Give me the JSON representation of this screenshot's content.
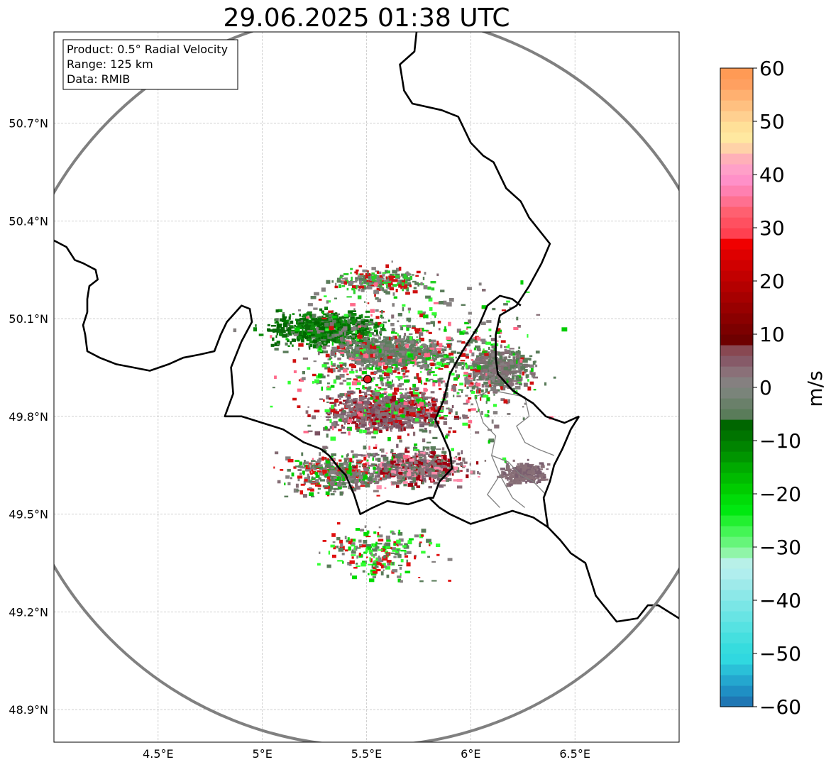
{
  "map": {
    "title": "29.06.2025 01:38 UTC",
    "info_lines": [
      "Product: 0.5° Radial Velocity",
      "Range: 125 km",
      "Data: RMIB"
    ],
    "extent": {
      "lon_min": 4.0,
      "lon_max": 7.0,
      "lat_min": 48.8,
      "lat_max": 50.98
    },
    "lon_ticks": [
      {
        "value": 4.5,
        "label": "4.5°E"
      },
      {
        "value": 5.0,
        "label": "5°E"
      },
      {
        "value": 5.5,
        "label": "5.5°E"
      },
      {
        "value": 6.0,
        "label": "6°E"
      },
      {
        "value": 6.5,
        "label": "6.5°E"
      }
    ],
    "lat_ticks": [
      {
        "value": 48.9,
        "label": "48.9°N"
      },
      {
        "value": 49.2,
        "label": "49.2°N"
      },
      {
        "value": 49.5,
        "label": "49.5°N"
      },
      {
        "value": 49.8,
        "label": "49.8°N"
      },
      {
        "value": 50.1,
        "label": "50.1°N"
      },
      {
        "value": 50.4,
        "label": "50.4°N"
      },
      {
        "value": 50.7,
        "label": "50.7°N"
      }
    ],
    "grid": true,
    "radar_site": {
      "lon": 5.505,
      "lat": 49.914,
      "color": "#e0141e"
    },
    "range_km": 125,
    "range_ring_color": "#808080",
    "border_color": "#000000",
    "inner_border_color": "#808080",
    "borders": [
      [
        [
          4.0,
          50.34
        ],
        [
          4.06,
          50.32
        ],
        [
          4.1,
          50.28
        ],
        [
          4.14,
          50.27
        ],
        [
          4.2,
          50.25
        ],
        [
          4.21,
          50.22
        ],
        [
          4.17,
          50.2
        ],
        [
          4.16,
          50.16
        ],
        [
          4.16,
          50.12
        ],
        [
          4.14,
          50.08
        ],
        [
          4.15,
          50.05
        ],
        [
          4.16,
          50.0
        ],
        [
          4.22,
          49.98
        ],
        [
          4.3,
          49.96
        ],
        [
          4.38,
          49.95
        ],
        [
          4.46,
          49.94
        ],
        [
          4.55,
          49.96
        ],
        [
          4.62,
          49.98
        ],
        [
          4.7,
          49.99
        ],
        [
          4.77,
          50.0
        ],
        [
          4.8,
          50.05
        ],
        [
          4.83,
          50.09
        ],
        [
          4.9,
          50.14
        ],
        [
          4.94,
          50.13
        ],
        [
          4.95,
          50.09
        ],
        [
          4.9,
          50.03
        ],
        [
          4.85,
          49.95
        ],
        [
          4.86,
          49.87
        ],
        [
          4.82,
          49.8
        ],
        [
          4.9,
          49.8
        ],
        [
          5.0,
          49.78
        ],
        [
          5.1,
          49.76
        ],
        [
          5.2,
          49.72
        ],
        [
          5.28,
          49.7
        ],
        [
          5.32,
          49.68
        ],
        [
          5.37,
          49.64
        ],
        [
          5.4,
          49.62
        ],
        [
          5.44,
          49.56
        ],
        [
          5.47,
          49.5
        ],
        [
          5.53,
          49.52
        ],
        [
          5.6,
          49.54
        ],
        [
          5.7,
          49.53
        ],
        [
          5.8,
          49.55
        ],
        [
          5.85,
          49.52
        ],
        [
          5.9,
          49.5
        ],
        [
          6.0,
          49.47
        ],
        [
          6.1,
          49.49
        ],
        [
          6.2,
          49.51
        ],
        [
          6.3,
          49.49
        ],
        [
          6.37,
          49.46
        ],
        [
          6.43,
          49.42
        ],
        [
          6.48,
          49.38
        ],
        [
          6.55,
          49.35
        ],
        [
          6.6,
          49.25
        ],
        [
          6.7,
          49.17
        ],
        [
          6.8,
          49.18
        ],
        [
          6.85,
          49.22
        ],
        [
          6.9,
          49.22
        ],
        [
          7.0,
          49.18
        ]
      ],
      [
        [
          5.74,
          50.98
        ],
        [
          5.73,
          50.92
        ],
        [
          5.66,
          50.88
        ],
        [
          5.68,
          50.8
        ],
        [
          5.72,
          50.76
        ],
        [
          5.86,
          50.74
        ],
        [
          5.94,
          50.72
        ],
        [
          6.0,
          50.64
        ],
        [
          6.06,
          50.6
        ],
        [
          6.11,
          50.58
        ],
        [
          6.17,
          50.5
        ],
        [
          6.24,
          50.46
        ],
        [
          6.28,
          50.41
        ],
        [
          6.33,
          50.37
        ],
        [
          6.38,
          50.33
        ],
        [
          6.34,
          50.27
        ],
        [
          6.28,
          50.2
        ],
        [
          6.22,
          50.14
        ],
        [
          6.14,
          50.11
        ],
        [
          6.12,
          50.05
        ],
        [
          6.12,
          49.98
        ],
        [
          6.13,
          49.93
        ],
        [
          6.2,
          49.88
        ],
        [
          6.3,
          49.84
        ],
        [
          6.36,
          49.8
        ],
        [
          6.45,
          49.78
        ],
        [
          6.52,
          49.8
        ]
      ],
      [
        [
          6.52,
          49.8
        ],
        [
          6.48,
          49.76
        ],
        [
          6.44,
          49.7
        ],
        [
          6.4,
          49.65
        ],
        [
          6.38,
          49.6
        ],
        [
          6.35,
          49.55
        ],
        [
          6.37,
          49.46
        ]
      ],
      [
        [
          5.87,
          49.85
        ],
        [
          5.83,
          49.79
        ],
        [
          5.86,
          49.75
        ],
        [
          5.9,
          49.69
        ],
        [
          5.91,
          49.64
        ],
        [
          5.85,
          49.6
        ],
        [
          5.82,
          49.55
        ],
        [
          5.8,
          49.55
        ]
      ],
      [
        [
          5.87,
          49.85
        ],
        [
          5.9,
          49.93
        ],
        [
          5.96,
          50.0
        ],
        [
          6.04,
          50.08
        ],
        [
          6.08,
          50.14
        ],
        [
          6.14,
          50.17
        ],
        [
          6.2,
          50.16
        ],
        [
          6.24,
          50.14
        ]
      ]
    ],
    "inner_borders": [
      [
        [
          6.02,
          49.86
        ],
        [
          6.1,
          49.88
        ],
        [
          6.18,
          49.87
        ],
        [
          6.26,
          49.86
        ],
        [
          6.28,
          49.8
        ],
        [
          6.22,
          49.77
        ],
        [
          6.26,
          49.72
        ],
        [
          6.32,
          49.7
        ],
        [
          6.4,
          49.68
        ]
      ],
      [
        [
          6.02,
          49.86
        ],
        [
          6.06,
          49.78
        ],
        [
          6.12,
          49.74
        ],
        [
          6.1,
          49.68
        ],
        [
          6.14,
          49.62
        ],
        [
          6.08,
          49.56
        ],
        [
          6.14,
          49.52
        ]
      ],
      [
        [
          6.1,
          49.68
        ],
        [
          6.18,
          49.66
        ],
        [
          6.24,
          49.62
        ],
        [
          6.3,
          49.6
        ],
        [
          6.36,
          49.56
        ]
      ],
      [
        [
          6.14,
          49.62
        ],
        [
          6.2,
          49.55
        ],
        [
          6.26,
          49.52
        ]
      ]
    ],
    "echo_clusters": [
      {
        "lon": 5.3,
        "lat": 50.07,
        "rx_km": 25,
        "ry_km": 8,
        "n": 700,
        "palette": [
          "#006600",
          "#007400",
          "#0a6a0a",
          "#0c8a0c",
          "#5a7c5a",
          "#108b10"
        ]
      },
      {
        "lon": 5.6,
        "lat": 50.0,
        "rx_km": 24,
        "ry_km": 7,
        "n": 700,
        "palette": [
          "#5a7c5a",
          "#6a806a",
          "#627a62",
          "#858080",
          "#5f7d5f"
        ]
      },
      {
        "lon": 5.58,
        "lat": 49.82,
        "rx_km": 26,
        "ry_km": 9,
        "n": 900,
        "palette": [
          "#866e76",
          "#7b6070",
          "#8a7078",
          "#7a5060",
          "#a00010",
          "#c01018",
          "#8a6a72"
        ]
      },
      {
        "lon": 5.72,
        "lat": 49.65,
        "rx_km": 24,
        "ry_km": 8,
        "n": 700,
        "palette": [
          "#866e76",
          "#7b6070",
          "#8a7a7a",
          "#a00010",
          "#5a7c5a",
          "#ff8aaa"
        ]
      },
      {
        "lon": 6.12,
        "lat": 49.95,
        "rx_km": 16,
        "ry_km": 10,
        "n": 450,
        "palette": [
          "#858080",
          "#7a7070",
          "#5a7c5a",
          "#866e76"
        ]
      },
      {
        "lon": 6.25,
        "lat": 49.63,
        "rx_km": 10,
        "ry_km": 5,
        "n": 220,
        "palette": [
          "#866e76",
          "#7b6070",
          "#8a7078"
        ]
      },
      {
        "lon": 5.35,
        "lat": 49.63,
        "rx_km": 22,
        "ry_km": 9,
        "n": 400,
        "palette": [
          "#866e76",
          "#858080",
          "#00cc00",
          "#5a7c5a",
          "#e01010"
        ]
      },
      {
        "lon": 5.55,
        "lat": 49.38,
        "rx_km": 25,
        "ry_km": 12,
        "n": 220,
        "palette": [
          "#858080",
          "#5a7c5a",
          "#00dd00",
          "#e01010",
          "#33ff33"
        ]
      },
      {
        "lon": 5.55,
        "lat": 50.22,
        "rx_km": 22,
        "ry_km": 6,
        "n": 250,
        "palette": [
          "#858080",
          "#5a7c5a",
          "#d01010",
          "#2ad02a"
        ]
      },
      {
        "lon": 5.7,
        "lat": 49.95,
        "rx_km": 55,
        "ry_km": 35,
        "n": 900,
        "palette": [
          "#858080",
          "#5a7c5a",
          "#d01010",
          "#00cc00",
          "#33ff33",
          "#866e76",
          "#ff6a8a"
        ]
      }
    ]
  },
  "colorbar": {
    "min": -60,
    "max": 60,
    "ticks": [
      -60,
      -50,
      -40,
      -30,
      -20,
      -10,
      0,
      10,
      20,
      30,
      40,
      50,
      60
    ],
    "tick_labels": [
      "−60",
      "−50",
      "−40",
      "−30",
      "−20",
      "−10",
      "0",
      "10",
      "20",
      "30",
      "40",
      "50",
      "60"
    ],
    "unit_label": "m/s",
    "stops": [
      {
        "from": -60,
        "to": -58,
        "color": "#1f77b4"
      },
      {
        "from": -58,
        "to": -56,
        "color": "#1f8fc4"
      },
      {
        "from": -56,
        "to": -54,
        "color": "#24a7cf"
      },
      {
        "from": -54,
        "to": -52,
        "color": "#2ac0d8"
      },
      {
        "from": -52,
        "to": -50,
        "color": "#30d8e0"
      },
      {
        "from": -50,
        "to": -48,
        "color": "#36dcde"
      },
      {
        "from": -48,
        "to": -46,
        "color": "#45dfdf"
      },
      {
        "from": -46,
        "to": -44,
        "color": "#56e2e2"
      },
      {
        "from": -44,
        "to": -42,
        "color": "#68e4e4"
      },
      {
        "from": -42,
        "to": -40,
        "color": "#7ae6e6"
      },
      {
        "from": -40,
        "to": -38,
        "color": "#8ce8e8"
      },
      {
        "from": -38,
        "to": -36,
        "color": "#9eeaea"
      },
      {
        "from": -36,
        "to": -34,
        "color": "#b0eeee"
      },
      {
        "from": -34,
        "to": -32,
        "color": "#b8f0e8"
      },
      {
        "from": -32,
        "to": -30,
        "color": "#90f5a8"
      },
      {
        "from": -30,
        "to": -28,
        "color": "#66f57a"
      },
      {
        "from": -28,
        "to": -26,
        "color": "#44f555"
      },
      {
        "from": -26,
        "to": -24,
        "color": "#22f030"
      },
      {
        "from": -24,
        "to": -22,
        "color": "#00e810"
      },
      {
        "from": -22,
        "to": -20,
        "color": "#00dc08"
      },
      {
        "from": -20,
        "to": -18,
        "color": "#00cc00"
      },
      {
        "from": -18,
        "to": -16,
        "color": "#00bb00"
      },
      {
        "from": -16,
        "to": -14,
        "color": "#00aa00"
      },
      {
        "from": -14,
        "to": -12,
        "color": "#009500"
      },
      {
        "from": -12,
        "to": -10,
        "color": "#008400"
      },
      {
        "from": -10,
        "to": -8,
        "color": "#007400"
      },
      {
        "from": -8,
        "to": -6,
        "color": "#006600"
      },
      {
        "from": -6,
        "to": -4,
        "color": "#5a7c5a"
      },
      {
        "from": -4,
        "to": -2,
        "color": "#6a806a"
      },
      {
        "from": -2,
        "to": 0,
        "color": "#7a847a"
      },
      {
        "from": 0,
        "to": 2,
        "color": "#858080"
      },
      {
        "from": 2,
        "to": 4,
        "color": "#8a7078"
      },
      {
        "from": 4,
        "to": 6,
        "color": "#865a68"
      },
      {
        "from": 6,
        "to": 8,
        "color": "#884852"
      },
      {
        "from": 8,
        "to": 10,
        "color": "#6e0000"
      },
      {
        "from": 10,
        "to": 12,
        "color": "#7c0000"
      },
      {
        "from": 12,
        "to": 14,
        "color": "#8a0000"
      },
      {
        "from": 14,
        "to": 16,
        "color": "#980000"
      },
      {
        "from": 16,
        "to": 18,
        "color": "#a60000"
      },
      {
        "from": 18,
        "to": 20,
        "color": "#b40000"
      },
      {
        "from": 20,
        "to": 22,
        "color": "#c20000"
      },
      {
        "from": 22,
        "to": 24,
        "color": "#d00000"
      },
      {
        "from": 24,
        "to": 26,
        "color": "#de0000"
      },
      {
        "from": 26,
        "to": 28,
        "color": "#f00000"
      },
      {
        "from": 28,
        "to": 30,
        "color": "#ff4050"
      },
      {
        "from": 30,
        "to": 32,
        "color": "#ff5060"
      },
      {
        "from": 32,
        "to": 34,
        "color": "#ff6070"
      },
      {
        "from": 34,
        "to": 36,
        "color": "#ff7090"
      },
      {
        "from": 36,
        "to": 38,
        "color": "#ff80b0"
      },
      {
        "from": 38,
        "to": 40,
        "color": "#ff90c8"
      },
      {
        "from": 40,
        "to": 42,
        "color": "#ffa0c8"
      },
      {
        "from": 42,
        "to": 44,
        "color": "#ffb0b8"
      },
      {
        "from": 44,
        "to": 46,
        "color": "#ffd2a8"
      },
      {
        "from": 46,
        "to": 48,
        "color": "#ffe8a0"
      },
      {
        "from": 48,
        "to": 50,
        "color": "#ffe098"
      },
      {
        "from": 50,
        "to": 52,
        "color": "#ffd090"
      },
      {
        "from": 52,
        "to": 54,
        "color": "#ffc080"
      },
      {
        "from": 54,
        "to": 56,
        "color": "#ffb070"
      },
      {
        "from": 56,
        "to": 58,
        "color": "#ffa060"
      },
      {
        "from": 58,
        "to": 60,
        "color": "#ff9a55"
      }
    ]
  }
}
